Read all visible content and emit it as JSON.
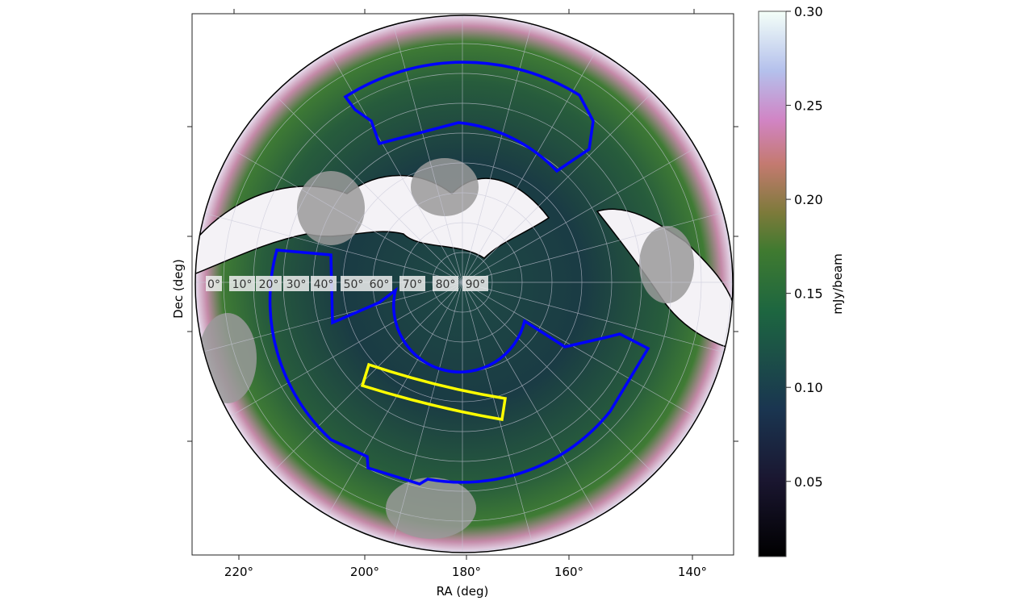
{
  "chart_data": {
    "type": "heatmap",
    "projection": "polar (orthographic sky map)",
    "xlabel": "RA (deg)",
    "ylabel": "Dec (deg)",
    "x_ticks": [
      "220°",
      "200°",
      "180°",
      "160°",
      "140°"
    ],
    "dec_labels": [
      "0°",
      "10°",
      "20°",
      "30°",
      "40°",
      "50°",
      "60°",
      "70°",
      "80°",
      "90°"
    ],
    "colorbar": {
      "label": "mJy/beam",
      "range": [
        0.01,
        0.3
      ],
      "ticks": [
        "0.05",
        "0.10",
        "0.15",
        "0.20",
        "0.25",
        "0.30"
      ],
      "tick_values": [
        0.05,
        0.1,
        0.15,
        0.2,
        0.25,
        0.3
      ],
      "colormap": "cubehelix"
    },
    "overlays": [
      {
        "kind": "footprint",
        "color": "#0000ff"
      },
      {
        "kind": "footprint",
        "color": "#0000ff"
      },
      {
        "kind": "field",
        "color": "#ffff00"
      },
      {
        "kind": "masked regions",
        "color": "#9a9a9a"
      }
    ],
    "grid": true
  }
}
